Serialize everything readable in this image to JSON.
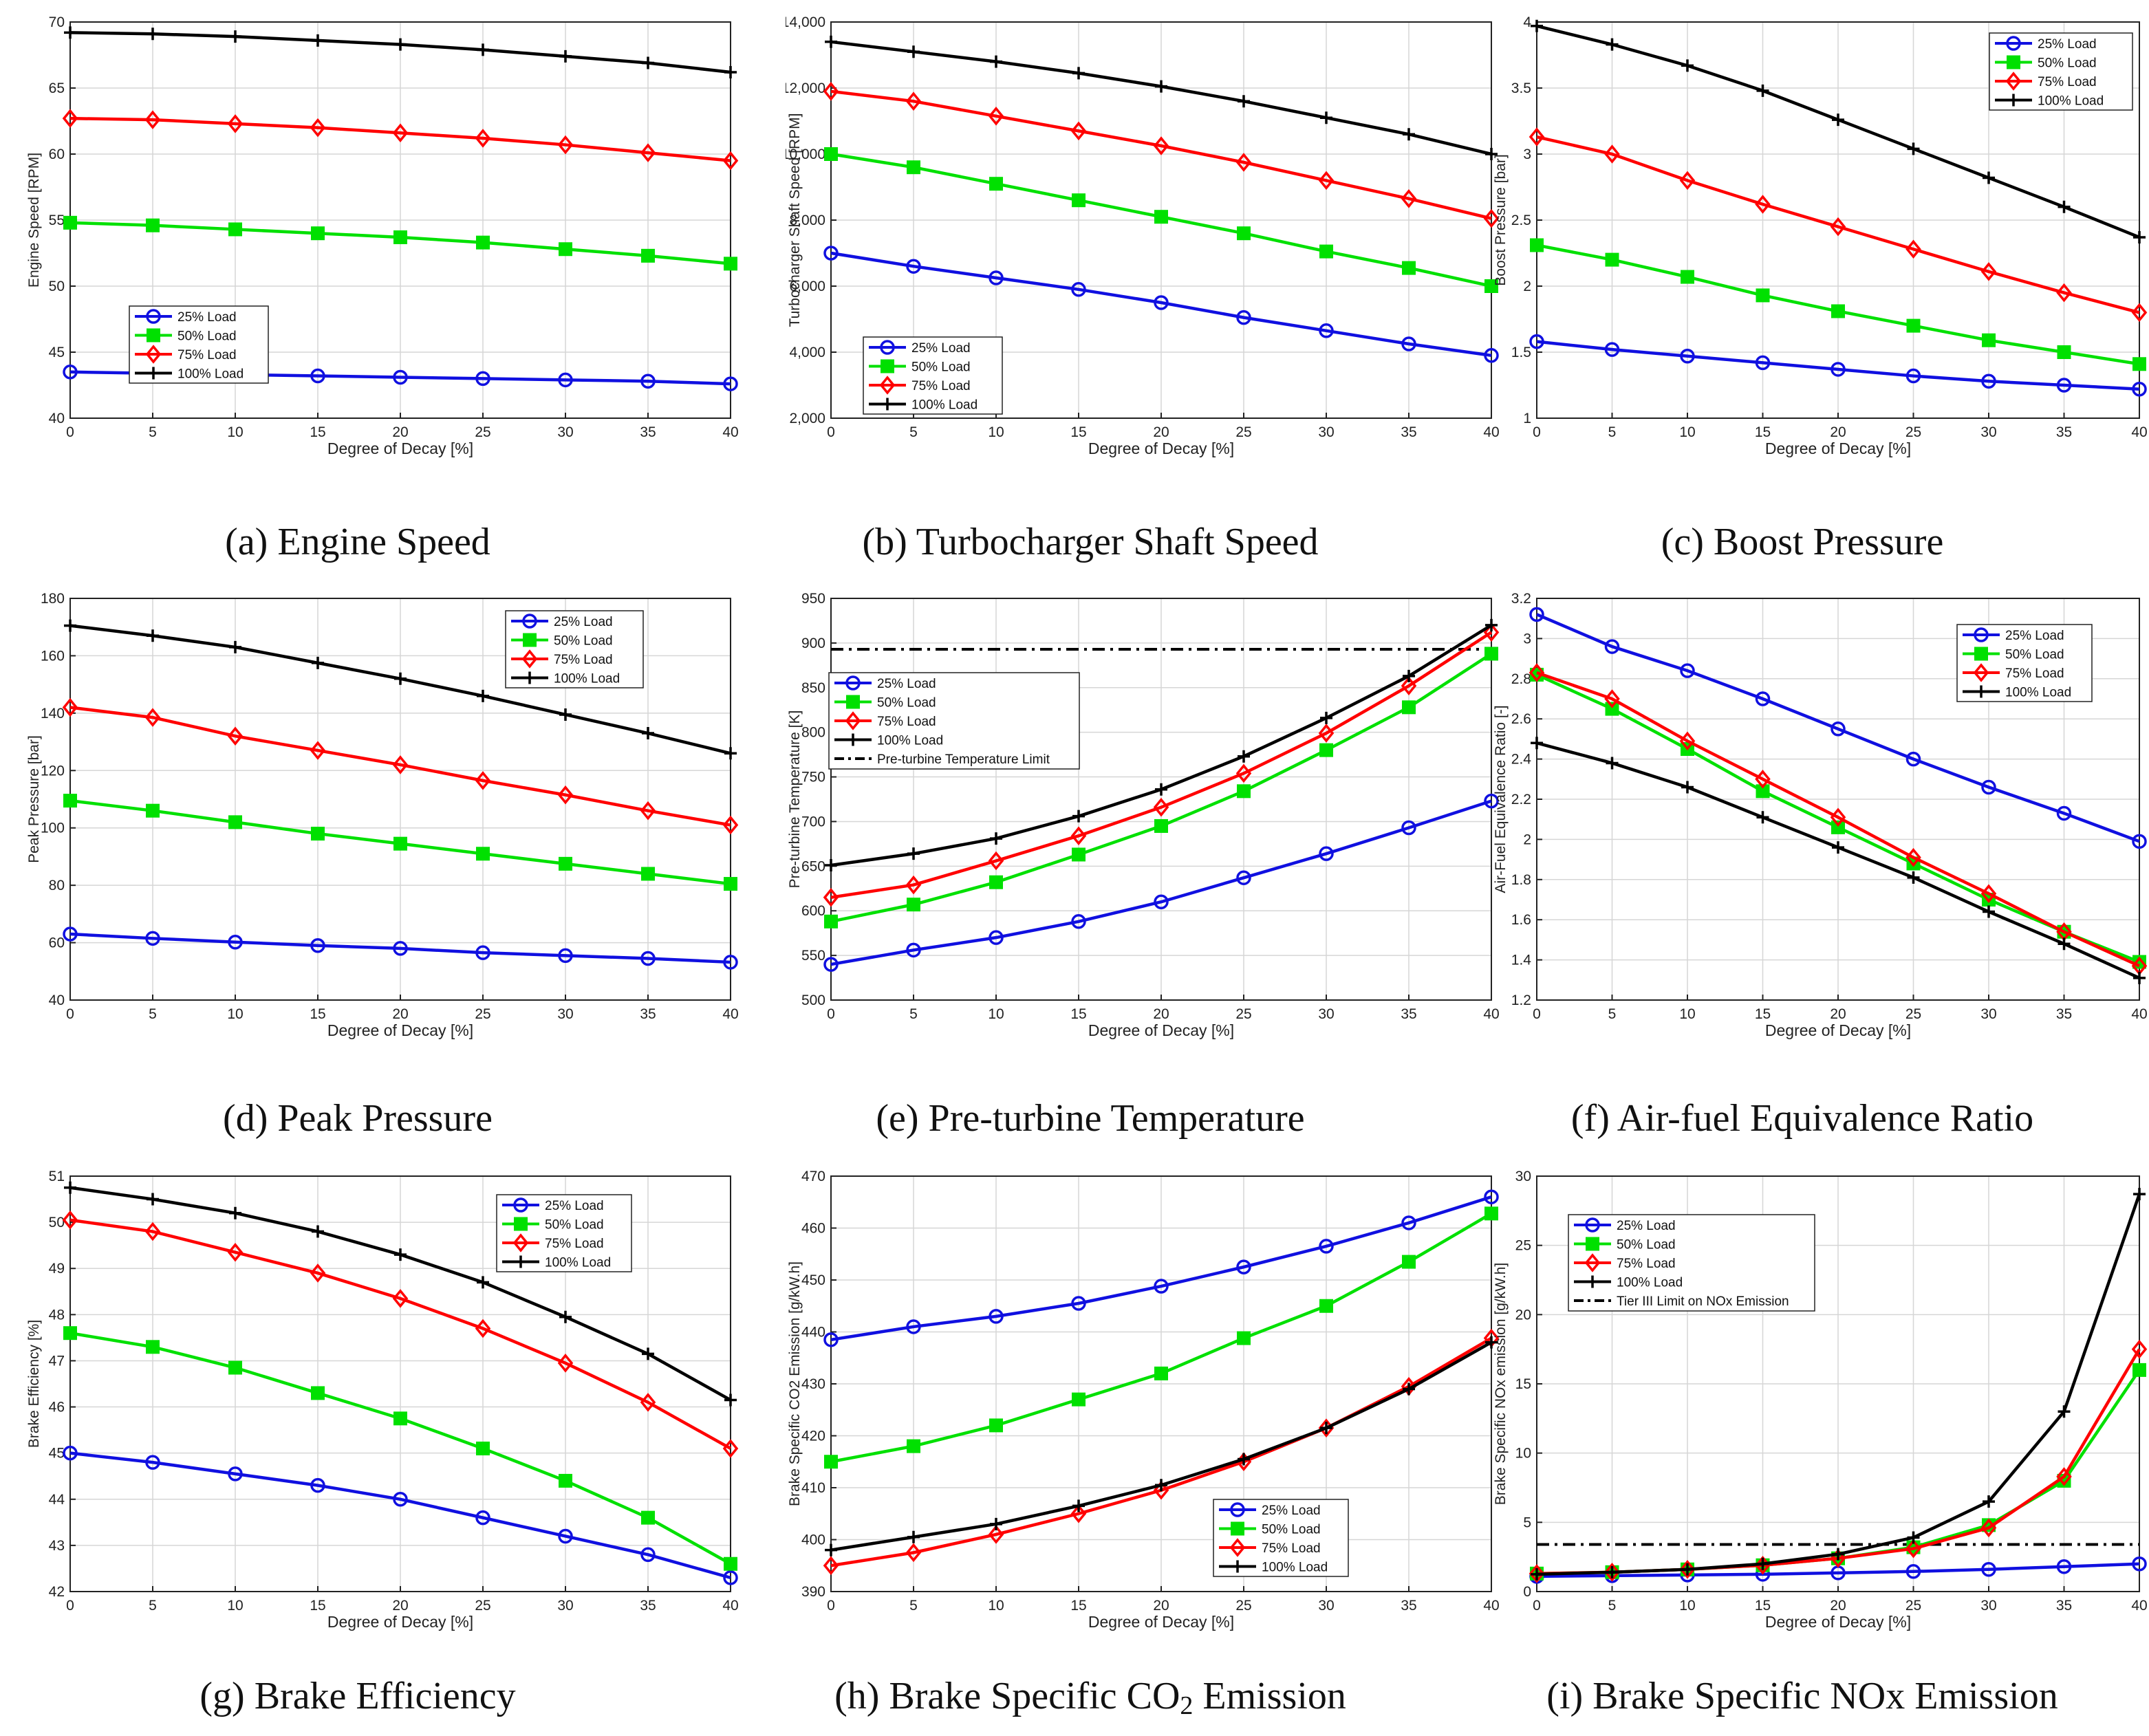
{
  "colors": {
    "s25": "#1010e0",
    "s50": "#00e000",
    "s75": "#ff0000",
    "s100": "#000000",
    "limit": "#000000",
    "axis": "#222222",
    "grid": "#d6d6d6"
  },
  "chart_data": [
    {
      "id": "a",
      "type": "line",
      "caption": "(a) Engine Speed",
      "xlabel": "Degree of Decay [%]",
      "ylabel": "Engine Speed [RPM]",
      "x": [
        0,
        5,
        10,
        15,
        20,
        25,
        30,
        35,
        40
      ],
      "xticks": [
        "0",
        "5",
        "10",
        "15",
        "20",
        "25",
        "30",
        "35",
        "40"
      ],
      "ylim": [
        40,
        70
      ],
      "yticks": [
        40,
        45,
        50,
        55,
        60,
        65,
        70
      ],
      "ytick_labels": [
        "40",
        "45",
        "50",
        "55",
        "60",
        "65",
        "70"
      ],
      "legend": {
        "position": "lower-left",
        "entries": [
          "25% Load",
          "50% Load",
          "75% Load",
          "100% Load"
        ]
      },
      "series": [
        {
          "name": "25% Load",
          "values": [
            43.5,
            43.4,
            43.3,
            43.2,
            43.1,
            43.0,
            42.9,
            42.8,
            42.6
          ]
        },
        {
          "name": "50% Load",
          "values": [
            54.8,
            54.6,
            54.3,
            54.0,
            53.7,
            53.3,
            52.8,
            52.3,
            51.7
          ]
        },
        {
          "name": "75% Load",
          "values": [
            62.7,
            62.6,
            62.3,
            62.0,
            61.6,
            61.2,
            60.7,
            60.1,
            59.5
          ]
        },
        {
          "name": "100% Load",
          "values": [
            69.2,
            69.1,
            68.9,
            68.6,
            68.3,
            67.9,
            67.4,
            66.9,
            66.2
          ]
        }
      ]
    },
    {
      "id": "b",
      "type": "line",
      "caption": "(b) Turbocharger Shaft Speed",
      "xlabel": "Degree of Decay [%]",
      "ylabel": "Turbocharger Shaft Speed [RPM]",
      "x": [
        0,
        5,
        10,
        15,
        20,
        25,
        30,
        35,
        40
      ],
      "xticks": [
        "0",
        "5",
        "10",
        "15",
        "20",
        "25",
        "30",
        "35",
        "40"
      ],
      "ylim": [
        2000,
        14000
      ],
      "yticks": [
        2000,
        4000,
        6000,
        8000,
        10000,
        12000,
        14000
      ],
      "ytick_labels": [
        "2,000",
        "4,000",
        "6,000",
        "8,000",
        "10,000",
        "12,000",
        "14,000"
      ],
      "legend": {
        "position": "lower-left",
        "entries": [
          "25% Load",
          "50% Load",
          "75% Load",
          "100% Load"
        ]
      },
      "series": [
        {
          "name": "25% Load",
          "values": [
            7000,
            6600,
            6250,
            5900,
            5500,
            5050,
            4650,
            4250,
            3900
          ]
        },
        {
          "name": "50% Load",
          "values": [
            10000,
            9600,
            9100,
            8600,
            8100,
            7600,
            7050,
            6550,
            6000
          ]
        },
        {
          "name": "75% Load",
          "values": [
            11900,
            11600,
            11150,
            10700,
            10250,
            9750,
            9200,
            8650,
            8050
          ]
        },
        {
          "name": "100% Load",
          "values": [
            13400,
            13100,
            12800,
            12450,
            12050,
            11600,
            11100,
            10600,
            10000
          ]
        }
      ]
    },
    {
      "id": "c",
      "type": "line",
      "caption": "(c) Boost Pressure",
      "xlabel": "Degree of Decay [%]",
      "ylabel": "Boost Pressure [bar]",
      "x": [
        0,
        5,
        10,
        15,
        20,
        25,
        30,
        35,
        40
      ],
      "xticks": [
        "0",
        "5",
        "10",
        "15",
        "20",
        "25",
        "30",
        "35",
        "40"
      ],
      "ylim": [
        1,
        4
      ],
      "yticks": [
        1,
        1.5,
        2,
        2.5,
        3,
        3.5,
        4
      ],
      "ytick_labels": [
        "1",
        "1.5",
        "2",
        "2.5",
        "3",
        "3.5",
        "4"
      ],
      "legend": {
        "position": "top-right",
        "entries": [
          "25% Load",
          "50% Load",
          "75% Load",
          "100% Load"
        ]
      },
      "series": [
        {
          "name": "25% Load",
          "values": [
            1.58,
            1.52,
            1.47,
            1.42,
            1.37,
            1.32,
            1.28,
            1.25,
            1.22
          ]
        },
        {
          "name": "50% Load",
          "values": [
            2.31,
            2.2,
            2.07,
            1.93,
            1.81,
            1.7,
            1.59,
            1.5,
            1.41
          ]
        },
        {
          "name": "75% Load",
          "values": [
            3.13,
            3.0,
            2.8,
            2.62,
            2.45,
            2.28,
            2.11,
            1.95,
            1.8
          ]
        },
        {
          "name": "100% Load",
          "values": [
            3.97,
            3.83,
            3.67,
            3.48,
            3.26,
            3.04,
            2.82,
            2.6,
            2.37
          ]
        }
      ]
    },
    {
      "id": "d",
      "type": "line",
      "caption": "(d) Peak Pressure",
      "xlabel": "Degree of Decay [%]",
      "ylabel": "Peak Pressure [bar]",
      "x": [
        0,
        5,
        10,
        15,
        20,
        25,
        30,
        35,
        40
      ],
      "xticks": [
        "0",
        "5",
        "10",
        "15",
        "20",
        "25",
        "30",
        "35",
        "40"
      ],
      "ylim": [
        40,
        180
      ],
      "yticks": [
        40,
        60,
        80,
        100,
        120,
        140,
        160,
        180
      ],
      "ytick_labels": [
        "40",
        "60",
        "80",
        "100",
        "120",
        "140",
        "160",
        "180"
      ],
      "legend": {
        "position": "top-right",
        "entries": [
          "25% Load",
          "50% Load",
          "75% Load",
          "100% Load"
        ]
      },
      "series": [
        {
          "name": "25% Load",
          "values": [
            63,
            61.5,
            60.2,
            59,
            58,
            56.5,
            55.5,
            54.5,
            53.2
          ]
        },
        {
          "name": "50% Load",
          "values": [
            109.5,
            106,
            102,
            98,
            94.5,
            91,
            87.5,
            84,
            80.5
          ]
        },
        {
          "name": "75% Load",
          "values": [
            142,
            138.5,
            132,
            127,
            122,
            116.5,
            111.5,
            106,
            101
          ]
        },
        {
          "name": "100% Load",
          "values": [
            170.5,
            167,
            163,
            157.5,
            152,
            146,
            139.5,
            133,
            126
          ]
        }
      ]
    },
    {
      "id": "e",
      "type": "line",
      "caption": "(e) Pre-turbine Temperature",
      "xlabel": "Degree of Decay [%]",
      "ylabel": "Pre-turbine Temperature [K]",
      "x": [
        0,
        5,
        10,
        15,
        20,
        25,
        30,
        35,
        40
      ],
      "xticks": [
        "0",
        "5",
        "10",
        "15",
        "20",
        "25",
        "30",
        "35",
        "40"
      ],
      "ylim": [
        500,
        950
      ],
      "yticks": [
        500,
        550,
        600,
        650,
        700,
        750,
        800,
        850,
        900,
        950
      ],
      "ytick_labels": [
        "500",
        "550",
        "600",
        "650",
        "700",
        "750",
        "800",
        "850",
        "900",
        "950"
      ],
      "legend": {
        "position": "upper-left",
        "entries": [
          "25% Load",
          "50% Load",
          "75% Load",
          "100% Load",
          "Pre-turbine Temperature Limit"
        ]
      },
      "limit": {
        "name": "Pre-turbine Temperature Limit",
        "value": 893
      },
      "series": [
        {
          "name": "25% Load",
          "values": [
            540,
            556,
            570,
            588,
            610,
            637,
            664,
            693,
            723
          ]
        },
        {
          "name": "50% Load",
          "values": [
            588,
            607,
            632,
            663,
            695,
            734,
            780,
            828,
            888
          ]
        },
        {
          "name": "75% Load",
          "values": [
            615,
            629,
            656,
            684,
            716,
            754,
            799,
            852,
            912
          ]
        },
        {
          "name": "100% Load",
          "values": [
            651,
            664,
            681,
            706,
            736,
            773,
            816,
            863,
            920
          ]
        }
      ]
    },
    {
      "id": "f",
      "type": "line",
      "caption": "(f) Air-fuel Equivalence Ratio",
      "xlabel": "Degree of Decay [%]",
      "ylabel": "Air-Fuel Equivalence Ratio [-]",
      "x": [
        0,
        5,
        10,
        15,
        20,
        25,
        30,
        35,
        40
      ],
      "xticks": [
        "0",
        "5",
        "10",
        "15",
        "20",
        "25",
        "30",
        "35",
        "40"
      ],
      "ylim": [
        1.2,
        3.2
      ],
      "yticks": [
        1.2,
        1.4,
        1.6,
        1.8,
        2,
        2.2,
        2.4,
        2.6,
        2.8,
        3,
        3.2
      ],
      "ytick_labels": [
        "1.2",
        "1.4",
        "1.6",
        "1.8",
        "2",
        "2.2",
        "2.4",
        "2.6",
        "2.8",
        "3",
        "3.2"
      ],
      "legend": {
        "position": "top-right",
        "entries": [
          "25% Load",
          "50% Load",
          "75% Load",
          "100% Load"
        ]
      },
      "series": [
        {
          "name": "25% Load",
          "values": [
            3.12,
            2.96,
            2.84,
            2.7,
            2.55,
            2.4,
            2.26,
            2.13,
            1.99
          ]
        },
        {
          "name": "50% Load",
          "values": [
            2.82,
            2.65,
            2.45,
            2.24,
            2.06,
            1.88,
            1.7,
            1.54,
            1.39
          ]
        },
        {
          "name": "75% Load",
          "values": [
            2.83,
            2.7,
            2.49,
            2.3,
            2.11,
            1.91,
            1.73,
            1.54,
            1.37
          ]
        },
        {
          "name": "100% Load",
          "values": [
            2.48,
            2.38,
            2.26,
            2.11,
            1.96,
            1.81,
            1.64,
            1.48,
            1.31
          ]
        }
      ]
    },
    {
      "id": "g",
      "type": "line",
      "caption": "(g) Brake Efficiency",
      "xlabel": "Degree of Decay [%]",
      "ylabel": "Brake Efficiency [%]",
      "x": [
        0,
        5,
        10,
        15,
        20,
        25,
        30,
        35,
        40
      ],
      "xticks": [
        "0",
        "5",
        "10",
        "15",
        "20",
        "25",
        "30",
        "35",
        "40"
      ],
      "ylim": [
        42,
        51
      ],
      "yticks": [
        42,
        43,
        44,
        45,
        46,
        47,
        48,
        49,
        50,
        51
      ],
      "ytick_labels": [
        "42",
        "43",
        "44",
        "45",
        "46",
        "47",
        "48",
        "49",
        "50",
        "51"
      ],
      "legend": {
        "position": "top-right",
        "entries": [
          "25% Load",
          "50% Load",
          "75% Load",
          "100% Load"
        ]
      },
      "series": [
        {
          "name": "25% Load",
          "values": [
            45.0,
            44.8,
            44.55,
            44.3,
            44.0,
            43.6,
            43.2,
            42.8,
            42.3
          ]
        },
        {
          "name": "50% Load",
          "values": [
            47.6,
            47.3,
            46.85,
            46.3,
            45.75,
            45.1,
            44.4,
            43.6,
            42.6
          ]
        },
        {
          "name": "75% Load",
          "values": [
            50.05,
            49.8,
            49.35,
            48.9,
            48.35,
            47.7,
            46.95,
            46.1,
            45.1
          ]
        },
        {
          "name": "100% Load",
          "values": [
            50.75,
            50.5,
            50.2,
            49.8,
            49.3,
            48.7,
            47.95,
            47.15,
            46.15
          ]
        }
      ]
    },
    {
      "id": "h",
      "type": "line",
      "caption": "(h) Brake Specific CO",
      "caption_sub": "2",
      "caption_tail": " Emission",
      "xlabel": "Degree of Decay [%]",
      "ylabel": "Brake Specific CO2 Emission [g/kW.h]",
      "x": [
        0,
        5,
        10,
        15,
        20,
        25,
        30,
        35,
        40
      ],
      "xticks": [
        "0",
        "5",
        "10",
        "15",
        "20",
        "25",
        "30",
        "35",
        "40"
      ],
      "ylim": [
        390,
        470
      ],
      "yticks": [
        390,
        400,
        410,
        420,
        430,
        440,
        450,
        460,
        470
      ],
      "ytick_labels": [
        "390",
        "400",
        "410",
        "420",
        "430",
        "440",
        "450",
        "460",
        "470"
      ],
      "legend": {
        "position": "lower-right",
        "entries": [
          "25% Load",
          "50% Load",
          "75% Load",
          "100% Load"
        ]
      },
      "series": [
        {
          "name": "25% Load",
          "values": [
            438.5,
            441,
            443,
            445.5,
            448.8,
            452.5,
            456.5,
            461,
            466
          ]
        },
        {
          "name": "50% Load",
          "values": [
            415,
            418,
            422,
            427,
            432,
            438.8,
            445,
            453.5,
            462.8
          ]
        },
        {
          "name": "75% Load",
          "values": [
            395,
            397.5,
            401,
            405,
            409.5,
            415,
            421.5,
            429.5,
            438.8
          ]
        },
        {
          "name": "100% Load",
          "values": [
            398,
            400.5,
            403,
            406.5,
            410.5,
            415.5,
            421.5,
            429,
            438
          ]
        }
      ]
    },
    {
      "id": "i",
      "type": "line",
      "caption": "(i) Brake Specific NOx Emission",
      "xlabel": "Degree of Decay [%]",
      "ylabel": "Brake Specific NOx emission [g/kW.h]",
      "x": [
        0,
        5,
        10,
        15,
        20,
        25,
        30,
        35,
        40
      ],
      "xticks": [
        "0",
        "5",
        "10",
        "15",
        "20",
        "25",
        "30",
        "35",
        "40"
      ],
      "ylim": [
        0,
        30
      ],
      "yticks": [
        0,
        5,
        10,
        15,
        20,
        25,
        30
      ],
      "ytick_labels": [
        "0",
        "5",
        "10",
        "15",
        "20",
        "25",
        "30"
      ],
      "legend": {
        "position": "upper-left",
        "entries": [
          "25% Load",
          "50% Load",
          "75% Load",
          "100% Load",
          "Tier III Limit on NOx Emission"
        ]
      },
      "limit": {
        "name": "Tier III Limit on NOx Emission",
        "value": 3.4
      },
      "series": [
        {
          "name": "25% Load",
          "values": [
            1.1,
            1.15,
            1.2,
            1.25,
            1.35,
            1.45,
            1.6,
            1.8,
            2.0
          ]
        },
        {
          "name": "50% Load",
          "values": [
            1.3,
            1.4,
            1.6,
            1.9,
            2.4,
            3.2,
            4.8,
            8.0,
            16.0
          ]
        },
        {
          "name": "75% Load",
          "values": [
            1.3,
            1.4,
            1.6,
            1.9,
            2.4,
            3.1,
            4.6,
            8.3,
            17.5
          ]
        },
        {
          "name": "100% Load",
          "values": [
            1.25,
            1.4,
            1.6,
            2.0,
            2.7,
            3.9,
            6.5,
            13.0,
            28.7
          ]
        }
      ]
    }
  ]
}
